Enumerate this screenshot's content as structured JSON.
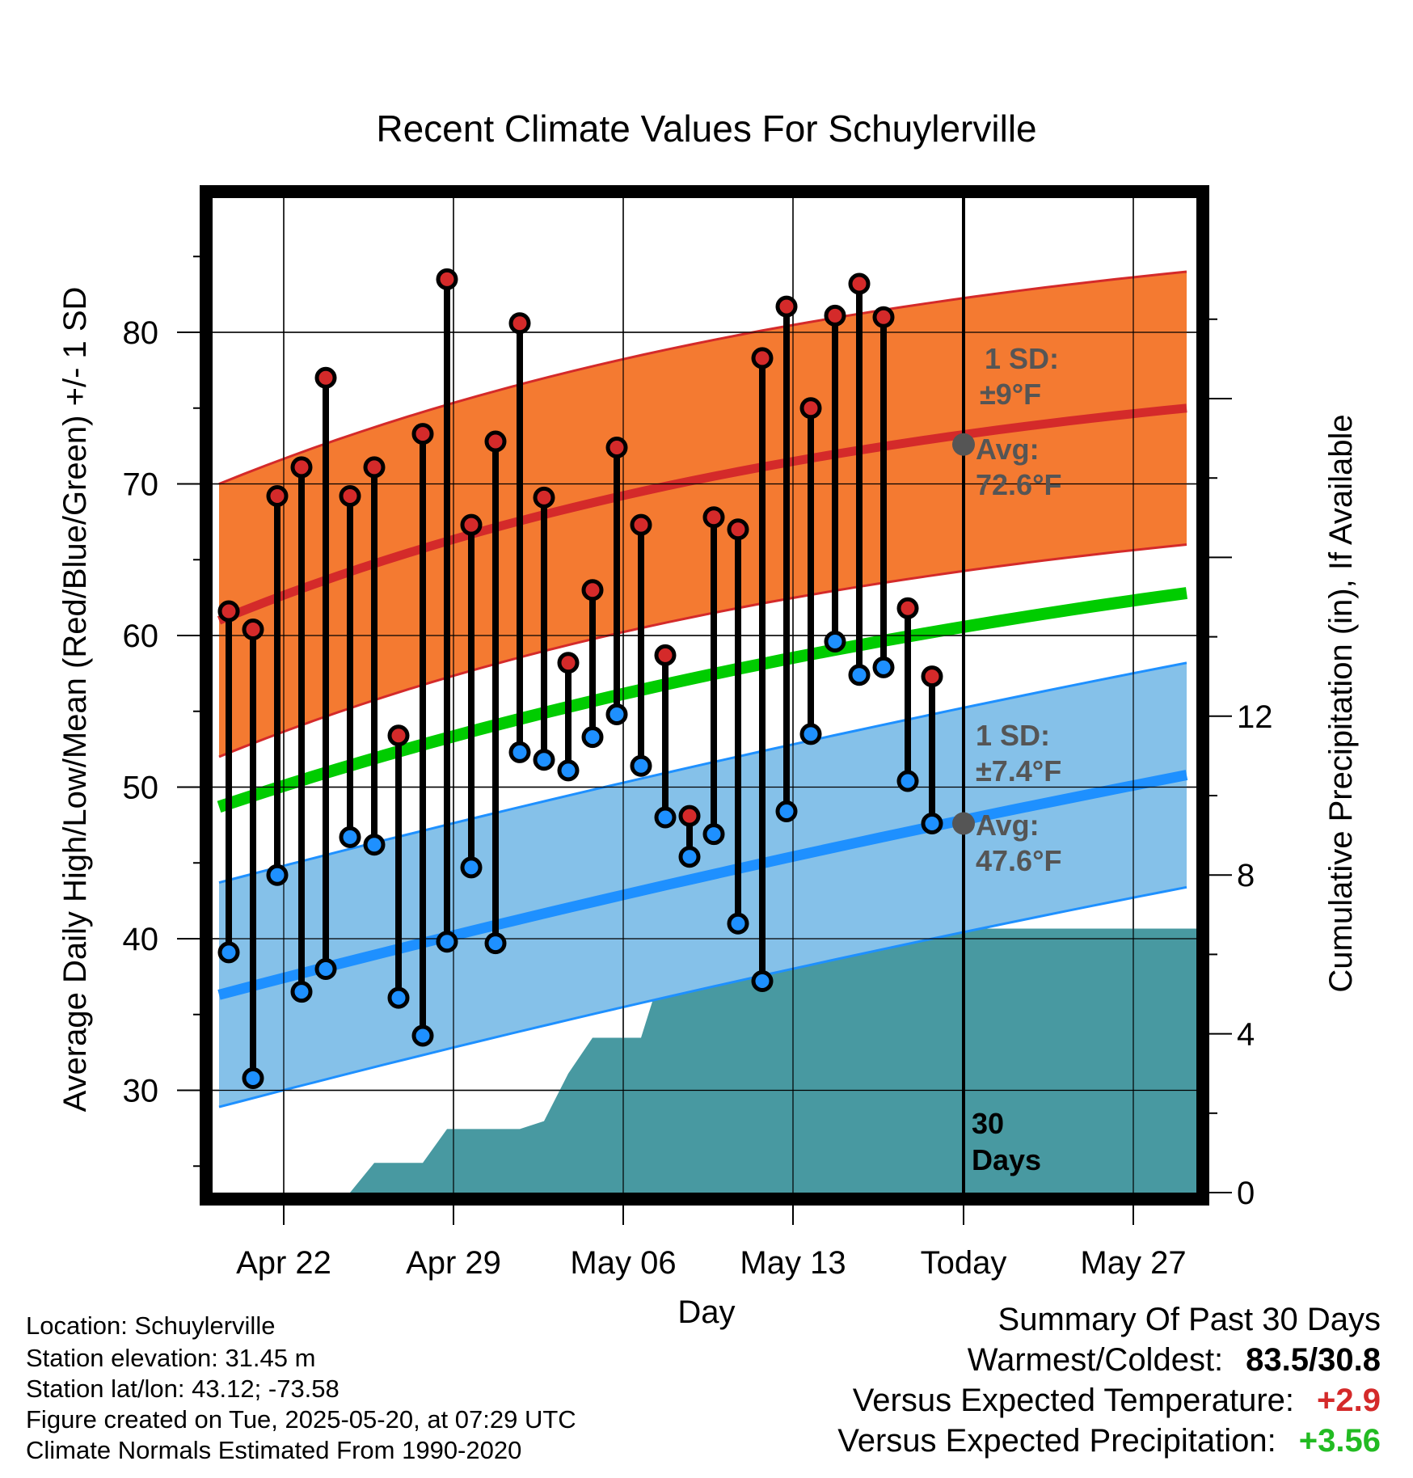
{
  "chart_data": {
    "type": "line",
    "title": "Recent Climate Values For Schuylerville",
    "xlabel": "Day",
    "ylabel": "Average Daily High/Low/Mean (Red/Blue/Green) +/- 1 SD",
    "y2label": "Cumulative Precipitation (in), If Available",
    "ylim": [
      23,
      89
    ],
    "y2lim": [
      0,
      23
    ],
    "yticks": [
      "30",
      "40",
      "50",
      "60",
      "70",
      "80"
    ],
    "y2ticks": [
      "0",
      "4",
      "8",
      "12"
    ],
    "xtick_labels": [
      "Apr 22",
      "Apr 29",
      "May 06",
      "May 13",
      "Today",
      "May 27"
    ],
    "today_label": "30 Days",
    "grid": true,
    "colors": {
      "high_band": "#f47a31",
      "high_line": "#d42a2a",
      "low_band": "#85c1e9",
      "low_line": "#1e90ff",
      "mean_line": "#00cc00",
      "precip": "#4899a1",
      "high_marker": "#d42a2a",
      "low_marker": "#1e90ff",
      "avg_marker": "#555555",
      "annotation": "#555555"
    },
    "normals": {
      "high_avg": {
        "start": 61.0,
        "end": 75.0
      },
      "high_sd": 9,
      "low_avg": {
        "start": 36.3,
        "end": 50.8
      },
      "low_sd": 7.4,
      "mean_avg": {
        "start": 48.7,
        "end": 62.8
      }
    },
    "daily": {
      "high": [
        61.6,
        60.4,
        69.2,
        71.1,
        77.0,
        69.2,
        71.1,
        53.4,
        73.3,
        83.5,
        67.3,
        72.8,
        80.6,
        69.1,
        58.2,
        63.0,
        72.4,
        67.3,
        58.7,
        48.1,
        67.8,
        67.0,
        78.3,
        81.7,
        75.0,
        81.1,
        83.2,
        81.0,
        61.8,
        57.3
      ],
      "low": [
        39.1,
        30.8,
        44.2,
        36.5,
        38.0,
        46.7,
        46.2,
        36.1,
        33.6,
        39.8,
        44.7,
        39.7,
        52.3,
        51.8,
        51.1,
        53.3,
        54.8,
        51.4,
        48.0,
        45.4,
        46.9,
        41.0,
        37.2,
        48.4,
        53.5,
        59.6,
        57.4,
        57.9,
        50.4,
        47.6
      ]
    },
    "precip": {
      "cumulative": [
        0,
        0,
        0,
        0,
        0,
        0,
        0.75,
        0.75,
        0.75,
        1.6,
        1.6,
        1.6,
        1.6,
        1.8,
        3.0,
        3.9,
        3.9,
        3.9,
        5.85,
        5.95,
        5.95,
        5.95,
        5.95,
        5.95,
        5.95,
        6.1,
        6.45,
        6.65,
        6.65,
        6.65,
        6.65,
        6.65,
        6.65,
        6.65,
        6.65,
        6.65,
        6.65,
        6.65,
        6.65,
        6.65,
        6.65,
        6.65
      ]
    },
    "annotations": {
      "high_sd_label": "1 SD:",
      "high_sd_value": "±9°F",
      "high_avg_label": "Avg:",
      "high_avg_value": "72.6°F",
      "high_avg_today": 72.6,
      "low_sd_label": "1 SD:",
      "low_sd_value": "±7.4°F",
      "low_avg_label": "Avg:",
      "low_avg_value": "47.6°F",
      "low_avg_today": 47.6
    }
  },
  "footer": {
    "location": "Location: Schuylerville",
    "elevation": "Station elevation: 31.45 m",
    "latlon": "Station lat/lon: 43.12; -73.58",
    "created": "Figure created on Tue, 2025-05-20, at 07:29 UTC",
    "normals": "Climate Normals Estimated From 1990-2020"
  },
  "summary": {
    "title": "Summary Of Past 30 Days",
    "warmest_label": "Warmest/Coldest:",
    "warmest_value": "83.5/30.8",
    "temp_label": "Versus Expected Temperature:",
    "temp_value": "+2.9",
    "temp_color": "#d42a2a",
    "precip_label": "Versus Expected Precipitation:",
    "precip_value": "+3.56",
    "precip_color": "#22bb22"
  }
}
